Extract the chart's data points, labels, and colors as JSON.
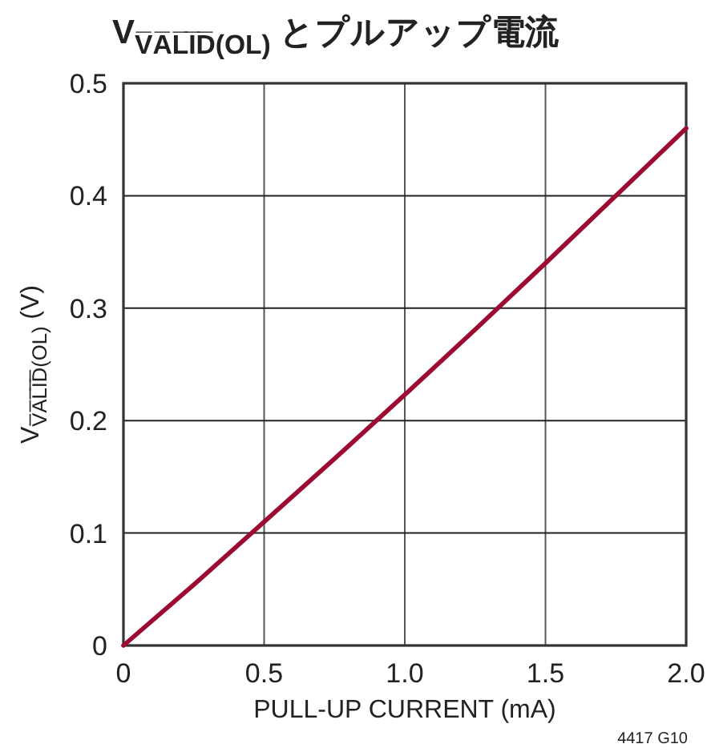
{
  "chart_data": {
    "type": "line",
    "title": "V$_{V̅A̅L̅I̅D̅(OL)}$ とプルアップ電流",
    "xlabel": "PULL-UP CURRENT (mA)",
    "ylabel": "V$_{V̅A̅L̅I̅D̅(OL)}$ (V)",
    "x": [
      0,
      0.25,
      0.5,
      0.75,
      1.0,
      1.25,
      1.5,
      1.75,
      2.0
    ],
    "series": [
      {
        "color": "#9c0b32",
        "values": [
          0,
          0.054,
          0.11,
          0.166,
          0.223,
          0.281,
          0.34,
          0.4,
          0.46
        ]
      }
    ],
    "xlim": [
      0,
      2
    ],
    "xticks": [
      0,
      0.5,
      {
        "value": 1,
        "label": "1.0"
      },
      1.5,
      {
        "value": 2,
        "label": "2.0"
      }
    ],
    "ylim": [
      0,
      0.5
    ],
    "yticks": [
      0,
      0.1,
      0.2,
      0.3,
      0.4,
      0.5
    ],
    "grid": true,
    "annotations": [
      "4417 G10"
    ]
  }
}
